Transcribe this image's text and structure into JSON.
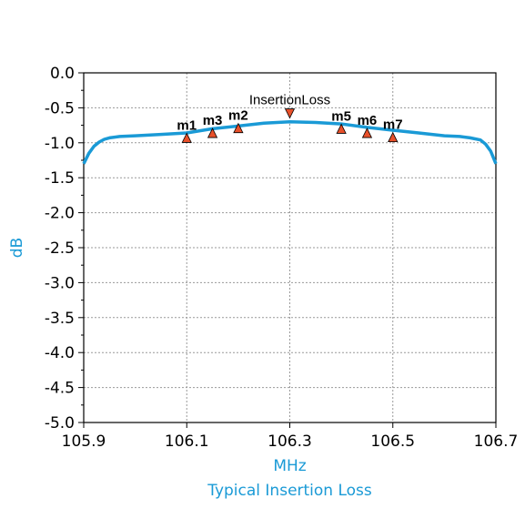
{
  "chart_data": {
    "type": "line",
    "xlabel": "MHz",
    "ylabel": "dB",
    "caption": "Typical Insertion Loss",
    "xlim": [
      105.9,
      106.7
    ],
    "ylim": [
      -5.0,
      0.0
    ],
    "x_ticks": [
      "105.9",
      "106.1",
      "106.3",
      "106.5",
      "106.7"
    ],
    "y_ticks": [
      "0.0",
      "-0.5",
      "-1.0",
      "-1.5",
      "-2.0",
      "-2.5",
      "-3.0",
      "-3.5",
      "-4.0",
      "-4.5",
      "-5.0"
    ],
    "grid": true,
    "series": [
      {
        "name": "InsertionLoss",
        "color": "#1a9ad6",
        "x": [
          105.9,
          105.91,
          105.92,
          105.93,
          105.94,
          105.95,
          105.97,
          106.0,
          106.05,
          106.1,
          106.15,
          106.2,
          106.25,
          106.3,
          106.35,
          106.4,
          106.45,
          106.5,
          106.55,
          106.6,
          106.63,
          106.65,
          106.67,
          106.68,
          106.69,
          106.7
        ],
        "y": [
          -1.3,
          -1.15,
          -1.05,
          -0.99,
          -0.95,
          -0.93,
          -0.91,
          -0.9,
          -0.88,
          -0.86,
          -0.8,
          -0.76,
          -0.72,
          -0.7,
          -0.71,
          -0.73,
          -0.78,
          -0.82,
          -0.86,
          -0.9,
          -0.91,
          -0.93,
          -0.96,
          -1.02,
          -1.12,
          -1.3
        ]
      }
    ],
    "markers": [
      {
        "name": "m1",
        "x": 106.1,
        "y": -0.93,
        "direction": "up"
      },
      {
        "name": "m3",
        "x": 106.15,
        "y": -0.86,
        "direction": "up"
      },
      {
        "name": "m2",
        "x": 106.2,
        "y": -0.79,
        "direction": "up"
      },
      {
        "name": "",
        "x": 106.3,
        "y": -0.58,
        "direction": "down"
      },
      {
        "name": "m5",
        "x": 106.4,
        "y": -0.8,
        "direction": "up"
      },
      {
        "name": "m6",
        "x": 106.45,
        "y": -0.86,
        "direction": "up"
      },
      {
        "name": "m7",
        "x": 106.5,
        "y": -0.92,
        "direction": "up"
      }
    ],
    "marker_color": "#e8502a"
  }
}
